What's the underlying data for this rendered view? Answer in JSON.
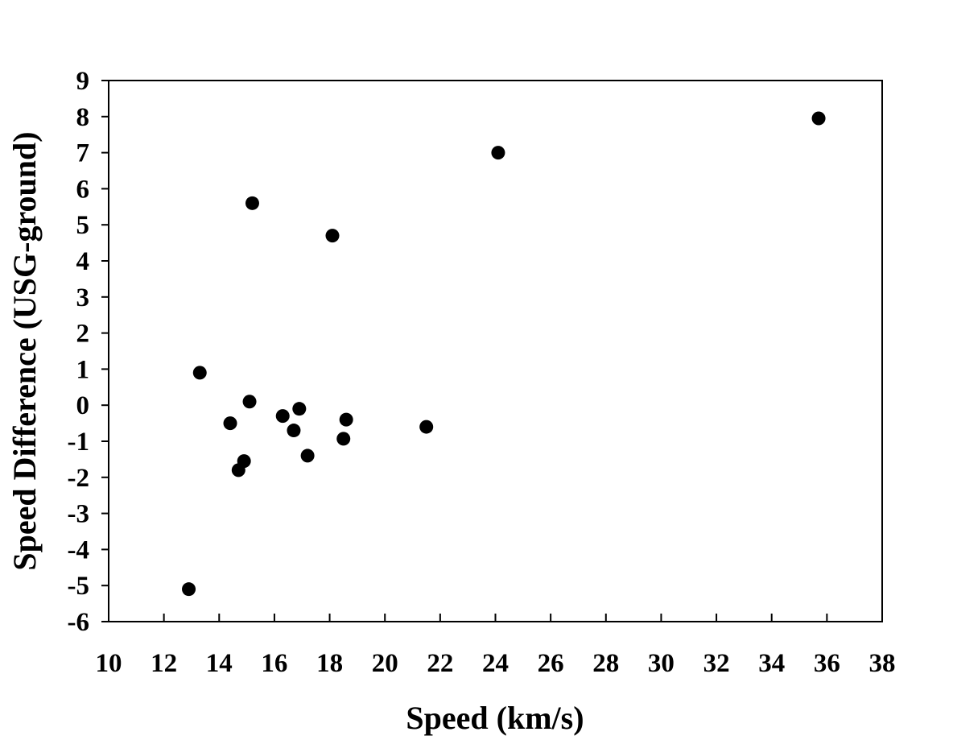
{
  "chart_data": {
    "type": "scatter",
    "xlabel": "Speed (km/s)",
    "ylabel": "Speed Difference (USG-ground)",
    "xlim": [
      10,
      38
    ],
    "ylim": [
      -6,
      9
    ],
    "x_ticks": [
      "10",
      "12",
      "14",
      "16",
      "18",
      "20",
      "22",
      "24",
      "26",
      "28",
      "30",
      "32",
      "34",
      "36",
      "38"
    ],
    "y_ticks": [
      "-6",
      "-5",
      "-4",
      "-3",
      "-2",
      "-1",
      "0",
      "1",
      "2",
      "3",
      "4",
      "5",
      "6",
      "7",
      "8",
      "9"
    ],
    "grid": false,
    "legend": "none",
    "marker_color": "#000000",
    "series": [
      {
        "points": [
          {
            "x": 12.9,
            "y": -5.1
          },
          {
            "x": 13.3,
            "y": 0.9
          },
          {
            "x": 14.4,
            "y": -0.5
          },
          {
            "x": 14.7,
            "y": -1.8
          },
          {
            "x": 14.9,
            "y": -1.55
          },
          {
            "x": 15.1,
            "y": 0.1
          },
          {
            "x": 15.2,
            "y": 5.6
          },
          {
            "x": 16.3,
            "y": -0.3
          },
          {
            "x": 16.7,
            "y": -0.7
          },
          {
            "x": 16.9,
            "y": -0.1
          },
          {
            "x": 17.2,
            "y": -1.4
          },
          {
            "x": 18.1,
            "y": 4.7
          },
          {
            "x": 18.5,
            "y": -0.93
          },
          {
            "x": 18.6,
            "y": -0.4
          },
          {
            "x": 21.5,
            "y": -0.6
          },
          {
            "x": 24.1,
            "y": 7.0
          },
          {
            "x": 35.7,
            "y": 7.95
          }
        ]
      }
    ]
  }
}
